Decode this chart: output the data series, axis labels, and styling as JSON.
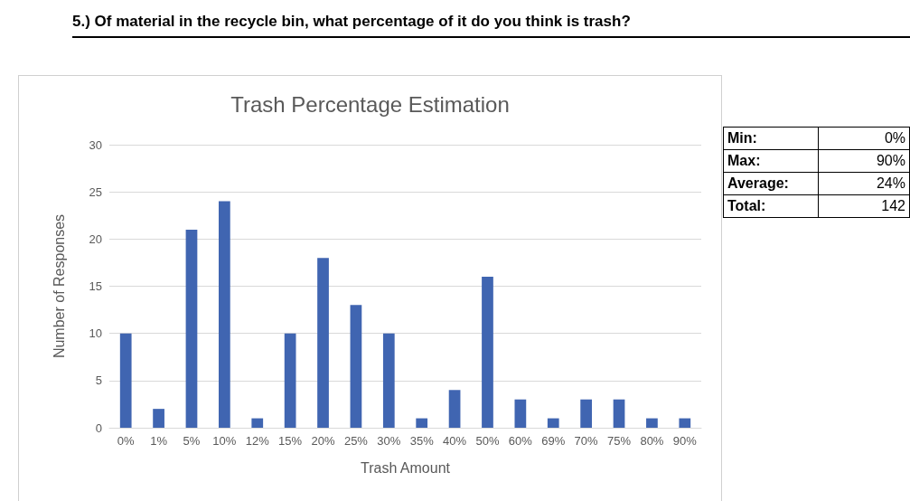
{
  "chart_data": {
    "type": "bar",
    "title": "Trash Percentage Estimation",
    "subtitle": "5.) Of material in the recycle bin, what percentage of it do you think is trash?",
    "xlabel": "Trash Amount",
    "ylabel": "Number of Responses",
    "categories": [
      "0%",
      "1%",
      "5%",
      "10%",
      "12%",
      "15%",
      "20%",
      "25%",
      "30%",
      "35%",
      "40%",
      "50%",
      "60%",
      "69%",
      "70%",
      "75%",
      "80%",
      "90%"
    ],
    "values": [
      10,
      2,
      21,
      24,
      1,
      10,
      18,
      13,
      10,
      1,
      4,
      16,
      3,
      1,
      3,
      3,
      1,
      1
    ],
    "color": "#4065b1",
    "ylim": [
      0,
      30
    ],
    "yticks": [
      0,
      5,
      10,
      15,
      20,
      25,
      30
    ],
    "grid": "y",
    "annotations": [
      "Min:",
      "0%",
      "Max:",
      "90%",
      "Average:",
      "24%",
      "Total:",
      "142"
    ]
  }
}
